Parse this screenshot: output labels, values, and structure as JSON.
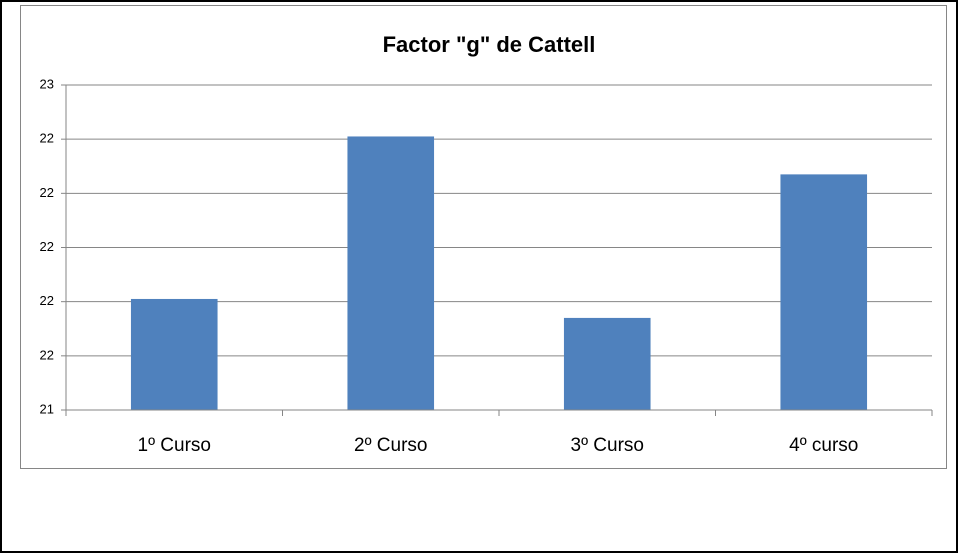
{
  "chart_data": {
    "type": "bar",
    "title": "Factor \"g\"  de Cattell",
    "categories": [
      "1º Curso",
      "2º Curso",
      "3º Curso",
      "4º curso"
    ],
    "values": [
      21.81,
      22.41,
      21.74,
      22.27
    ],
    "color": "#4f81bd",
    "ylim": [
      21.4,
      22.6
    ],
    "yticks": [
      {
        "value": 21.4,
        "label": "21"
      },
      {
        "value": 21.6,
        "label": "22"
      },
      {
        "value": 21.8,
        "label": "22"
      },
      {
        "value": 22.0,
        "label": "22"
      },
      {
        "value": 22.2,
        "label": "22"
      },
      {
        "value": 22.4,
        "label": "22"
      },
      {
        "value": 22.6,
        "label": "23"
      }
    ],
    "grid": true
  }
}
